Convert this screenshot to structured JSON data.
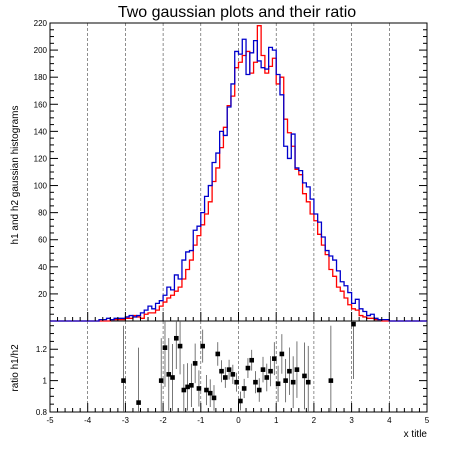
{
  "chart_data": [
    {
      "type": "line",
      "title": "Two gaussian plots and their ratio",
      "xlabel": "",
      "ylabel": "h1 and h2 gaussian histograms",
      "xlim": [
        -5,
        5
      ],
      "ylim": [
        0,
        220
      ],
      "x_ticks": [
        "-5",
        "-4",
        "-3",
        "-2",
        "-1",
        "0",
        "1",
        "2",
        "3",
        "4",
        "5"
      ],
      "y_ticks": [
        "20",
        "40",
        "60",
        "80",
        "100",
        "120",
        "140",
        "160",
        "180",
        "200",
        "220"
      ],
      "grid": "x-dashed",
      "bin_edges_start": -5,
      "bin_width": 0.1,
      "series": [
        {
          "name": "h1",
          "color": "#0000cc",
          "values": [
            0,
            0,
            0,
            0,
            0,
            0,
            0,
            0,
            0,
            0,
            0,
            0,
            0,
            1,
            1,
            2,
            1,
            2,
            2,
            2,
            3,
            4,
            3,
            4,
            6,
            8,
            11,
            9,
            13,
            15,
            19,
            25,
            23,
            34,
            31,
            45,
            51,
            52,
            67,
            70,
            80,
            92,
            100,
            117,
            124,
            140,
            137,
            158,
            175,
            199,
            197,
            208,
            182,
            198,
            207,
            192,
            187,
            186,
            202,
            200,
            182,
            167,
            129,
            120,
            138,
            113,
            111,
            102,
            99,
            90,
            79,
            73,
            62,
            52,
            48,
            45,
            37,
            29,
            26,
            21,
            13,
            16,
            9,
            7,
            4,
            5,
            2,
            1,
            1,
            1,
            0,
            0,
            0,
            0,
            0,
            0,
            0,
            0,
            0,
            0
          ]
        },
        {
          "name": "h2",
          "color": "#ff0000",
          "values": [
            0,
            0,
            0,
            0,
            0,
            0,
            0,
            0,
            0,
            0,
            0,
            0,
            0,
            0,
            0,
            0,
            1,
            1,
            1,
            1,
            2,
            2,
            4,
            3,
            2,
            5,
            6,
            6,
            8,
            11,
            14,
            17,
            19,
            22,
            25,
            31,
            38,
            45,
            56,
            63,
            71,
            79,
            88,
            103,
            113,
            128,
            143,
            159,
            166,
            187,
            191,
            196,
            199,
            183,
            191,
            218,
            196,
            183,
            188,
            194,
            175,
            180,
            149,
            139,
            129,
            112,
            108,
            94,
            88,
            79,
            74,
            64,
            56,
            49,
            38,
            33,
            25,
            22,
            17,
            12,
            9,
            8,
            4,
            3,
            2,
            2,
            1,
            1,
            0,
            0,
            0,
            0,
            0,
            0,
            0,
            0,
            0,
            0,
            0,
            0
          ]
        }
      ]
    },
    {
      "type": "scatter",
      "title": "",
      "xlabel": "x title",
      "ylabel": "ratio h1/h2",
      "xlim": [
        -5,
        5
      ],
      "ylim": [
        0.8,
        1.38
      ],
      "x_ticks": [
        "-5",
        "-4",
        "-3",
        "-2",
        "-1",
        "0",
        "1",
        "2",
        "3",
        "4",
        "5"
      ],
      "y_ticks": [
        "0.8",
        "1",
        "1.2"
      ],
      "grid": "x-dashed",
      "points": [
        {
          "x": -3.05,
          "y": 1.0
        },
        {
          "x": -2.65,
          "y": 0.86
        },
        {
          "x": -2.05,
          "y": 1.0
        },
        {
          "x": -1.95,
          "y": 1.21
        },
        {
          "x": -1.85,
          "y": 1.04
        },
        {
          "x": -1.75,
          "y": 1.02
        },
        {
          "x": -1.65,
          "y": 1.27
        },
        {
          "x": -1.55,
          "y": 1.22
        },
        {
          "x": -1.45,
          "y": 0.94
        },
        {
          "x": -1.35,
          "y": 0.96
        },
        {
          "x": -1.25,
          "y": 0.97
        },
        {
          "x": -1.15,
          "y": 1.11
        },
        {
          "x": -1.05,
          "y": 0.95
        },
        {
          "x": -0.95,
          "y": 1.22
        },
        {
          "x": -0.85,
          "y": 0.94
        },
        {
          "x": -0.75,
          "y": 0.92
        },
        {
          "x": -0.65,
          "y": 0.89
        },
        {
          "x": -0.55,
          "y": 1.17
        },
        {
          "x": -0.45,
          "y": 1.06
        },
        {
          "x": -0.35,
          "y": 1.02
        },
        {
          "x": -0.25,
          "y": 1.07
        },
        {
          "x": -0.15,
          "y": 1.04
        },
        {
          "x": -0.05,
          "y": 0.99
        },
        {
          "x": 0.05,
          "y": 0.87
        },
        {
          "x": 0.15,
          "y": 0.95
        },
        {
          "x": 0.25,
          "y": 1.08
        },
        {
          "x": 0.35,
          "y": 1.13
        },
        {
          "x": 0.45,
          "y": 0.99
        },
        {
          "x": 0.55,
          "y": 0.94
        },
        {
          "x": 0.65,
          "y": 1.07
        },
        {
          "x": 0.75,
          "y": 1.02
        },
        {
          "x": 0.85,
          "y": 1.06
        },
        {
          "x": 0.95,
          "y": 1.14
        },
        {
          "x": 1.05,
          "y": 0.98
        },
        {
          "x": 1.15,
          "y": 1.17
        },
        {
          "x": 1.25,
          "y": 1.0
        },
        {
          "x": 1.35,
          "y": 1.06
        },
        {
          "x": 1.45,
          "y": 0.99
        },
        {
          "x": 1.55,
          "y": 1.07
        },
        {
          "x": 1.75,
          "y": 1.03
        },
        {
          "x": 1.85,
          "y": 0.99
        },
        {
          "x": 2.45,
          "y": 1.0
        },
        {
          "x": 3.05,
          "y": 1.36
        }
      ]
    }
  ]
}
